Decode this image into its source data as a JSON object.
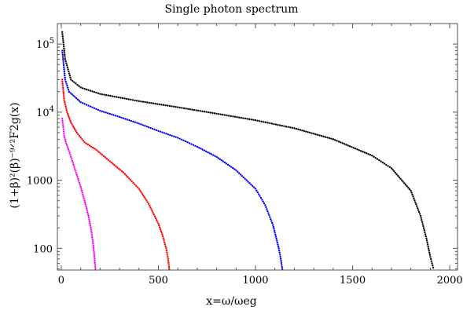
{
  "chart_data": {
    "type": "scatter",
    "title": "Single photon spectrum",
    "xlabel": "x=ω/ωeg",
    "ylabel": "(1+β)²(β)⁻⁹ᐟ²F2g(x)",
    "xlim": [
      -20,
      2040
    ],
    "ylim": [
      48,
      200000
    ],
    "yscale": "log",
    "grid": false,
    "legend": "none",
    "x_ticks": [
      {
        "value": 0,
        "label": "0"
      },
      {
        "value": 500,
        "label": "500"
      },
      {
        "value": 1000,
        "label": "1000"
      },
      {
        "value": 1500,
        "label": "1500"
      },
      {
        "value": 2000,
        "label": "2000"
      }
    ],
    "y_ticks": [
      {
        "value": 100,
        "label": "100"
      },
      {
        "value": 1000,
        "label": "1000"
      },
      {
        "value": 10000,
        "label": "10",
        "exp": "4"
      },
      {
        "value": 100000,
        "label": "10",
        "exp": "5"
      }
    ],
    "series": [
      {
        "color": "#000000",
        "points": [
          [
            5,
            150000
          ],
          [
            20,
            60000
          ],
          [
            50,
            30000
          ],
          [
            100,
            23000
          ],
          [
            200,
            18500
          ],
          [
            400,
            14500
          ],
          [
            600,
            11800
          ],
          [
            800,
            9500
          ],
          [
            1000,
            7600
          ],
          [
            1200,
            5800
          ],
          [
            1400,
            4000
          ],
          [
            1600,
            2300
          ],
          [
            1700,
            1500
          ],
          [
            1800,
            700
          ],
          [
            1850,
            300
          ],
          [
            1880,
            140
          ],
          [
            1900,
            75
          ],
          [
            1915,
            52
          ]
        ]
      },
      {
        "color": "#0000ff",
        "points": [
          [
            5,
            80000
          ],
          [
            20,
            30000
          ],
          [
            40,
            20000
          ],
          [
            100,
            14000
          ],
          [
            200,
            10500
          ],
          [
            300,
            8500
          ],
          [
            400,
            6800
          ],
          [
            500,
            5300
          ],
          [
            600,
            4200
          ],
          [
            700,
            3100
          ],
          [
            800,
            2200
          ],
          [
            900,
            1400
          ],
          [
            1000,
            750
          ],
          [
            1050,
            430
          ],
          [
            1090,
            220
          ],
          [
            1120,
            100
          ],
          [
            1130,
            70
          ],
          [
            1138,
            50
          ]
        ]
      },
      {
        "color": "#ff0000",
        "points": [
          [
            5,
            30000
          ],
          [
            15,
            15000
          ],
          [
            30,
            10000
          ],
          [
            50,
            7000
          ],
          [
            80,
            5000
          ],
          [
            120,
            3600
          ],
          [
            180,
            2800
          ],
          [
            250,
            1900
          ],
          [
            320,
            1300
          ],
          [
            400,
            750
          ],
          [
            450,
            450
          ],
          [
            500,
            230
          ],
          [
            520,
            160
          ],
          [
            540,
            100
          ],
          [
            550,
            70
          ],
          [
            556,
            50
          ]
        ]
      },
      {
        "color": "#ff00ff",
        "points": [
          [
            5,
            8000
          ],
          [
            15,
            4500
          ],
          [
            25,
            3500
          ],
          [
            40,
            2700
          ],
          [
            60,
            1800
          ],
          [
            80,
            1200
          ],
          [
            100,
            800
          ],
          [
            120,
            500
          ],
          [
            140,
            300
          ],
          [
            155,
            180
          ],
          [
            165,
            110
          ],
          [
            172,
            70
          ],
          [
            176,
            50
          ]
        ]
      }
    ]
  }
}
